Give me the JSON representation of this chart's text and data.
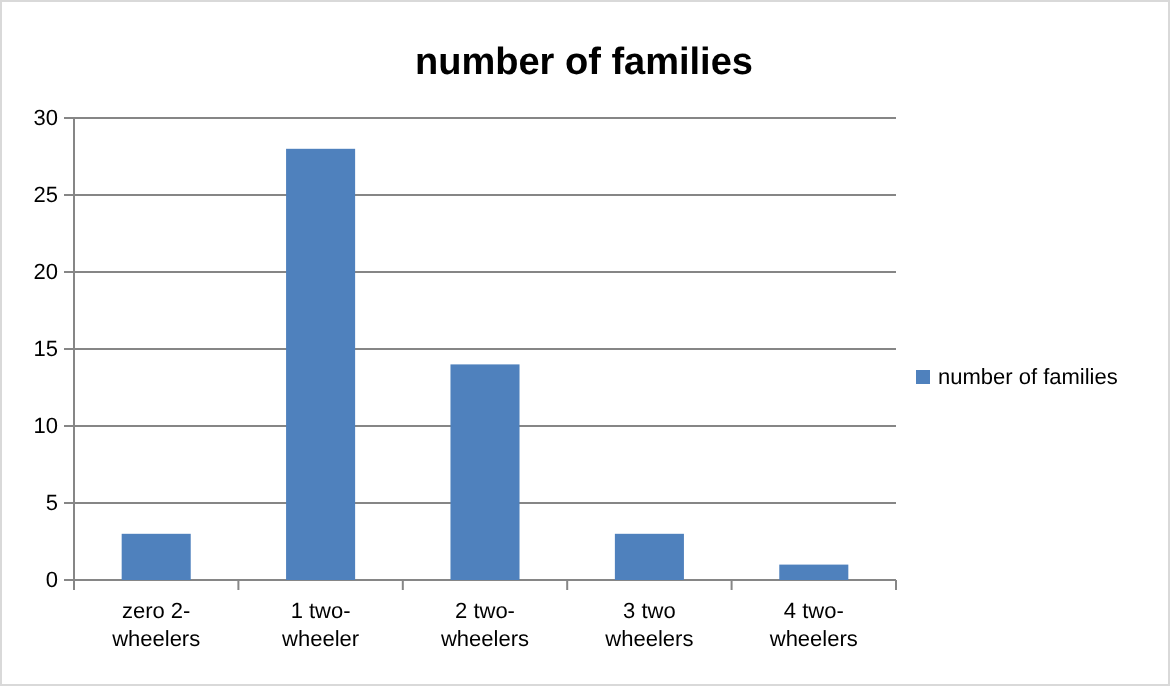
{
  "chart_data": {
    "type": "bar",
    "title": "number of families",
    "categories": [
      "zero 2-wheelers",
      "1 two-wheeler",
      "2 two-wheelers",
      "3 two wheelers",
      "4 two-wheelers"
    ],
    "series": [
      {
        "name": "number of families",
        "color": "#4f81bd",
        "values": [
          3,
          28,
          14,
          3,
          1
        ]
      }
    ],
    "ylim": [
      0,
      30
    ],
    "yticks": [
      0,
      5,
      10,
      15,
      20,
      25,
      30
    ],
    "grid": "y",
    "legend": "right"
  }
}
